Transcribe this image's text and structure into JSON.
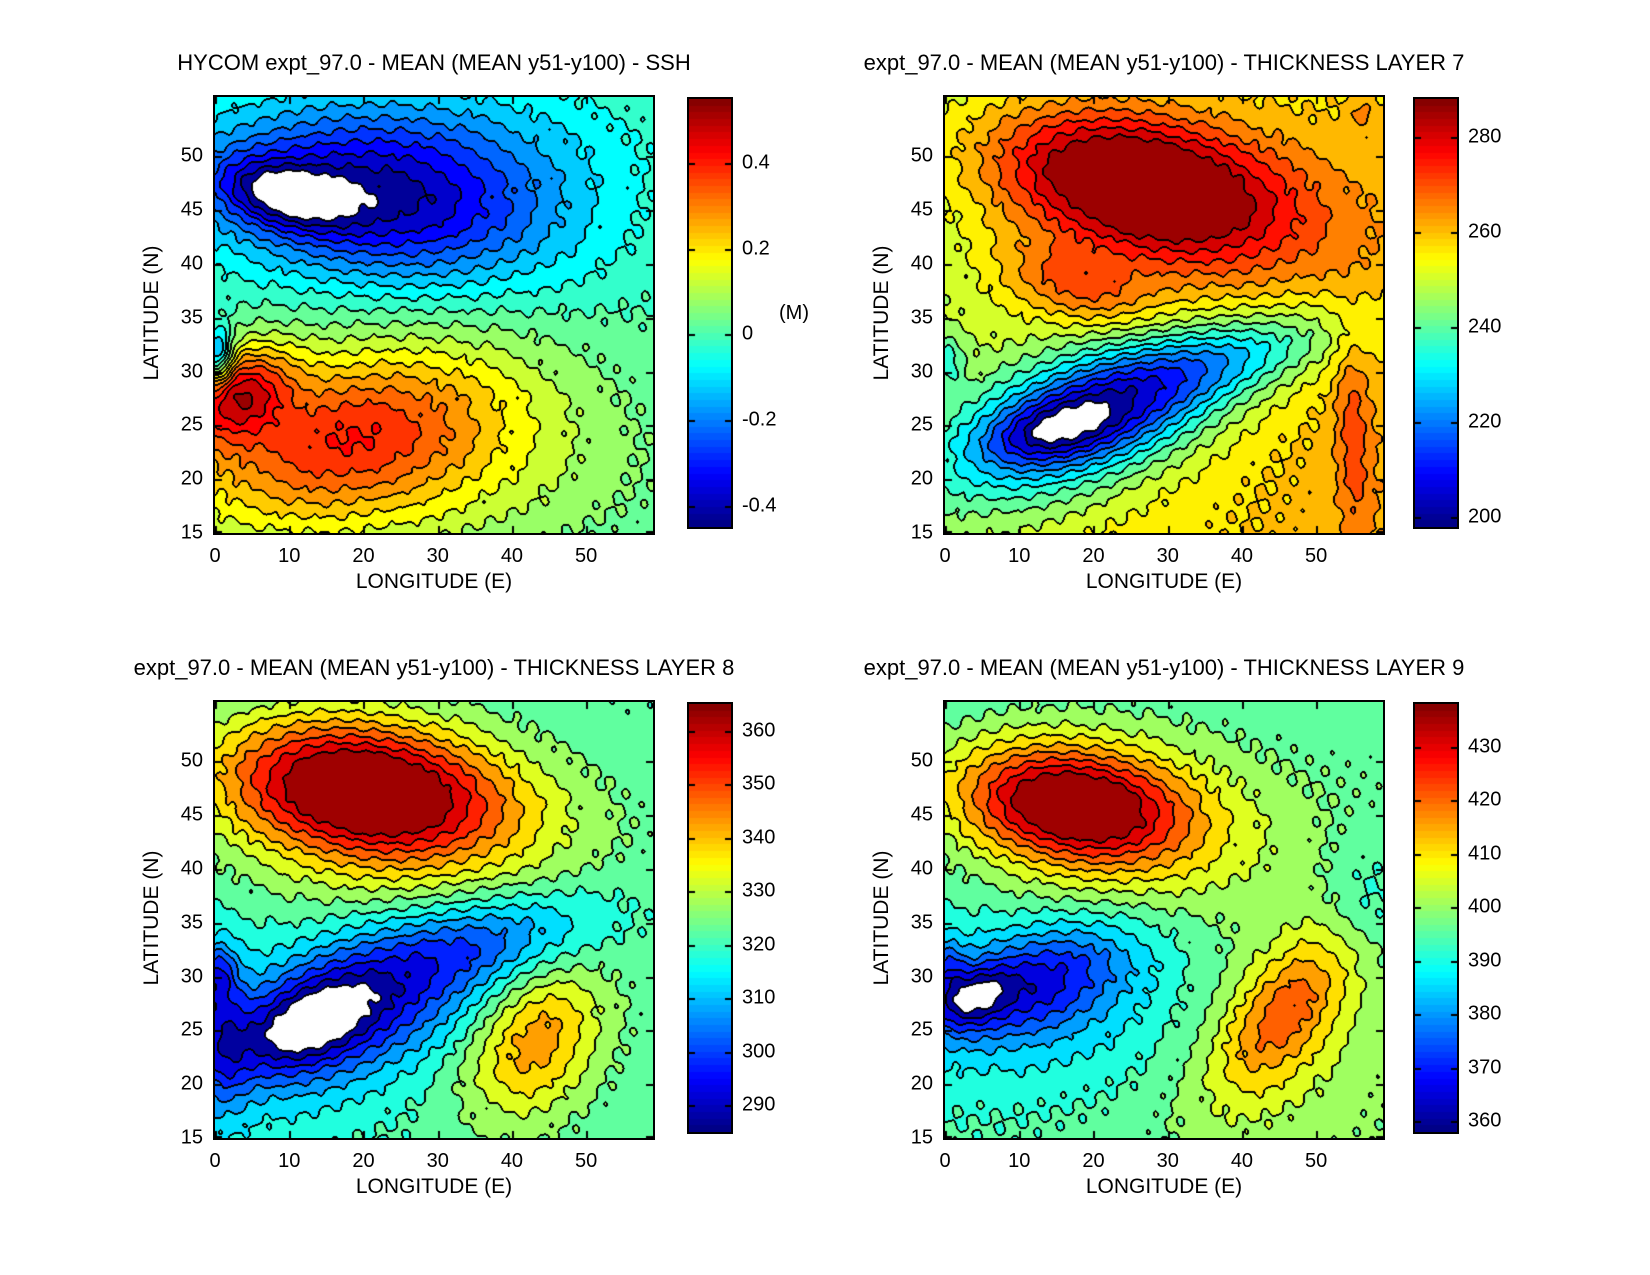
{
  "figure": {
    "background": "#ffffff",
    "colormap": "jet",
    "contour_line_color": "#000000",
    "below_min_fill": "#ffffff",
    "text_color": "#000000"
  },
  "chart_data": [
    {
      "type": "contour",
      "title": "HYCOM expt_97.0 - MEAN (MEAN y51-y100) - SSH",
      "xlabel": "LONGITUDE (E)",
      "ylabel": "LATITUDE (N)",
      "xlim": [
        0,
        59
      ],
      "ylim": [
        15,
        55.5
      ],
      "xticks": [
        0,
        10,
        20,
        30,
        40,
        50
      ],
      "yticks": [
        15,
        20,
        25,
        30,
        35,
        40,
        45,
        50
      ],
      "contour_interval": 0.05,
      "colorbar": {
        "vmin": -0.45,
        "vmax": 0.55,
        "unit": "(M)",
        "ticks": [
          {
            "v": 0.4,
            "label": "0.4"
          },
          {
            "v": 0.2,
            "label": "0.2"
          },
          {
            "v": 0,
            "label": "0"
          },
          {
            "v": -0.2,
            "label": "-0.2"
          },
          {
            "v": -0.4,
            "label": "-0.4"
          }
        ]
      },
      "field_model": {
        "base": 0.005,
        "x_gradient": 0,
        "y_gradient": 0,
        "y_ref": 55,
        "gaussians": [
          {
            "x": 22,
            "y": 45.5,
            "sx": 17,
            "sy": 5.0,
            "rot": -4,
            "amp": -0.38
          },
          {
            "x": 9,
            "y": 46.5,
            "sx": 6,
            "sy": 2.0,
            "rot": -8,
            "amp": -0.24
          },
          {
            "x": 28,
            "y": 51.5,
            "sx": 20,
            "sy": 4.5,
            "rot": 0,
            "amp": -0.12
          },
          {
            "x": 18,
            "y": 24.5,
            "sx": 16,
            "sy": 5.5,
            "rot": 8,
            "amp": 0.3
          },
          {
            "x": 3,
            "y": 28,
            "sx": 5,
            "sy": 2.8,
            "rot": 15,
            "amp": 0.34
          },
          {
            "x": 25,
            "y": 21,
            "sx": 22,
            "sy": 6,
            "rot": 0,
            "amp": 0.12
          },
          {
            "x": 0.5,
            "y": 31.5,
            "sx": 1.3,
            "sy": 1.8,
            "rot": 0,
            "amp": -0.28
          }
        ]
      }
    },
    {
      "type": "contour",
      "title": "expt_97.0 - MEAN (MEAN y51-y100) - THICKNESS LAYER 7",
      "xlabel": "LONGITUDE (E)",
      "ylabel": "LATITUDE (N)",
      "xlim": [
        0,
        59
      ],
      "ylim": [
        15,
        55.5
      ],
      "xticks": [
        0,
        10,
        20,
        30,
        40,
        50
      ],
      "yticks": [
        15,
        20,
        25,
        30,
        35,
        40,
        45,
        50
      ],
      "contour_interval": 5,
      "colorbar": {
        "vmin": 198,
        "vmax": 288,
        "unit": "",
        "ticks": [
          {
            "v": 280,
            "label": "280"
          },
          {
            "v": 260,
            "label": "260"
          },
          {
            "v": 240,
            "label": "240"
          },
          {
            "v": 220,
            "label": "220"
          },
          {
            "v": 200,
            "label": "200"
          }
        ]
      },
      "field_model": {
        "base": 246,
        "x_gradient": 0.2,
        "y_gradient": -0.1,
        "y_ref": 55,
        "gaussians": [
          {
            "x": 26,
            "y": 47.5,
            "sx": 14,
            "sy": 4.2,
            "rot": -8,
            "amp": 38
          },
          {
            "x": 27,
            "y": 45.5,
            "sx": 16,
            "sy": 7,
            "rot": -5,
            "amp": 12
          },
          {
            "x": 17,
            "y": 38,
            "sx": 7,
            "sy": 2.2,
            "rot": -10,
            "amp": 14
          },
          {
            "x": 20,
            "y": 26,
            "sx": 13,
            "sy": 4.0,
            "rot": 13,
            "amp": -48
          },
          {
            "x": 14,
            "y": 24.5,
            "sx": 6,
            "sy": 1.8,
            "rot": 8,
            "amp": -14
          },
          {
            "x": 40,
            "y": 31.5,
            "sx": 12,
            "sy": 2.5,
            "rot": 10,
            "amp": -18
          },
          {
            "x": 55,
            "y": 24,
            "sx": 1.7,
            "sy": 6.5,
            "rot": 3,
            "amp": 11
          },
          {
            "x": 56,
            "y": 54,
            "sx": 1.3,
            "sy": 0.9,
            "rot": 0,
            "amp": 7
          },
          {
            "x": 0.5,
            "y": 31,
            "sx": 1.5,
            "sy": 1.8,
            "rot": 0,
            "amp": -12
          }
        ]
      }
    },
    {
      "type": "contour",
      "title": "expt_97.0 - MEAN (MEAN y51-y100) - THICKNESS LAYER 8",
      "xlabel": "LONGITUDE (E)",
      "ylabel": "LATITUDE (N)",
      "xlim": [
        0,
        59
      ],
      "ylim": [
        15,
        55.5
      ],
      "xticks": [
        0,
        10,
        20,
        30,
        40,
        50
      ],
      "yticks": [
        15,
        20,
        25,
        30,
        35,
        40,
        45,
        50
      ],
      "contour_interval": 5,
      "colorbar": {
        "vmin": 285,
        "vmax": 365,
        "unit": "",
        "ticks": [
          {
            "v": 360,
            "label": "360"
          },
          {
            "v": 350,
            "label": "350"
          },
          {
            "v": 340,
            "label": "340"
          },
          {
            "v": 330,
            "label": "330"
          },
          {
            "v": 320,
            "label": "320"
          },
          {
            "v": 310,
            "label": "310"
          },
          {
            "v": 300,
            "label": "300"
          },
          {
            "v": 290,
            "label": "290"
          }
        ]
      },
      "field_model": {
        "base": 318,
        "x_gradient": 0.05,
        "y_gradient": -0.04,
        "y_ref": 55,
        "gaussians": [
          {
            "x": 20,
            "y": 47.5,
            "sx": 13,
            "sy": 4.2,
            "rot": -5,
            "amp": 42
          },
          {
            "x": 22,
            "y": 45,
            "sx": 18,
            "sy": 6.5,
            "rot": -5,
            "amp": 16
          },
          {
            "x": 18,
            "y": 27,
            "sx": 13,
            "sy": 4.5,
            "rot": 14,
            "amp": -30
          },
          {
            "x": 12,
            "y": 25.5,
            "sx": 6,
            "sy": 2.5,
            "rot": 15,
            "amp": -18
          },
          {
            "x": 1,
            "y": 25,
            "sx": 2.5,
            "sy": 5,
            "rot": 0,
            "amp": -16
          },
          {
            "x": 38,
            "y": 33.5,
            "sx": 11,
            "sy": 2.8,
            "rot": 8,
            "amp": -14
          },
          {
            "x": 43,
            "y": 24,
            "sx": 6.5,
            "sy": 4.5,
            "rot": 25,
            "amp": 22
          },
          {
            "x": 0.5,
            "y": 30.5,
            "sx": 1.5,
            "sy": 1.8,
            "rot": 0,
            "amp": -14
          }
        ]
      }
    },
    {
      "type": "contour",
      "title": "expt_97.0 - MEAN (MEAN y51-y100) - THICKNESS LAYER 9",
      "xlabel": "LONGITUDE (E)",
      "ylabel": "LATITUDE (N)",
      "xlim": [
        0,
        59
      ],
      "ylim": [
        15,
        55.5
      ],
      "xticks": [
        0,
        10,
        20,
        30,
        40,
        50
      ],
      "yticks": [
        15,
        20,
        25,
        30,
        35,
        40,
        45,
        50
      ],
      "contour_interval": 5,
      "colorbar": {
        "vmin": 358,
        "vmax": 438,
        "unit": "",
        "ticks": [
          {
            "v": 430,
            "label": "430"
          },
          {
            "v": 420,
            "label": "420"
          },
          {
            "v": 410,
            "label": "410"
          },
          {
            "v": 400,
            "label": "400"
          },
          {
            "v": 390,
            "label": "390"
          },
          {
            "v": 380,
            "label": "380"
          },
          {
            "v": 370,
            "label": "370"
          },
          {
            "v": 360,
            "label": "360"
          }
        ]
      },
      "field_model": {
        "base": 392,
        "x_gradient": 0.068,
        "y_gradient": -0.05,
        "y_ref": 55,
        "gaussians": [
          {
            "x": 17,
            "y": 46,
            "sx": 10.5,
            "sy": 3.6,
            "rot": -5,
            "amp": 40
          },
          {
            "x": 22,
            "y": 44.5,
            "sx": 16,
            "sy": 6,
            "rot": -5,
            "amp": 14
          },
          {
            "x": 12,
            "y": 29.5,
            "sx": 10,
            "sy": 3.2,
            "rot": 12,
            "amp": -22
          },
          {
            "x": 3.5,
            "y": 28,
            "sx": 3.5,
            "sy": 1.8,
            "rot": 15,
            "amp": -18
          },
          {
            "x": 14,
            "y": 27,
            "sx": 14,
            "sy": 5.5,
            "rot": 0,
            "amp": -9
          },
          {
            "x": 46,
            "y": 27,
            "sx": 7,
            "sy": 3.5,
            "rot": 35,
            "amp": 20
          },
          {
            "x": 44,
            "y": 23,
            "sx": 10,
            "sy": 6.5,
            "rot": 20,
            "amp": 7
          },
          {
            "x": 57,
            "y": 37,
            "sx": 4,
            "sy": 4,
            "rot": 0,
            "amp": -7
          },
          {
            "x": 0.5,
            "y": 31,
            "sx": 1.5,
            "sy": 2,
            "rot": 0,
            "amp": -12
          }
        ]
      }
    }
  ]
}
